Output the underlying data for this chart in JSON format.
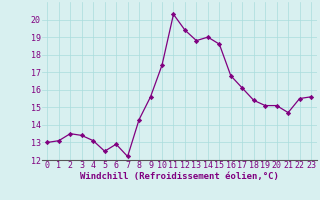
{
  "x": [
    0,
    1,
    2,
    3,
    4,
    5,
    6,
    7,
    8,
    9,
    10,
    11,
    12,
    13,
    14,
    15,
    16,
    17,
    18,
    19,
    20,
    21,
    22,
    23
  ],
  "y": [
    13.0,
    13.1,
    13.5,
    13.4,
    13.1,
    12.5,
    12.9,
    12.2,
    14.3,
    15.6,
    17.4,
    20.3,
    19.4,
    18.8,
    19.0,
    18.6,
    16.8,
    16.1,
    15.4,
    15.1,
    15.1,
    14.7,
    15.5,
    15.6
  ],
  "line_color": "#800080",
  "marker": "D",
  "marker_size": 2.2,
  "line_width": 0.9,
  "xlabel": "Windchill (Refroidissement éolien,°C)",
  "xlabel_fontsize": 6.5,
  "ylim": [
    12,
    21
  ],
  "xlim": [
    -0.5,
    23.5
  ],
  "yticks": [
    12,
    13,
    14,
    15,
    16,
    17,
    18,
    19,
    20
  ],
  "xticks": [
    0,
    1,
    2,
    3,
    4,
    5,
    6,
    7,
    8,
    9,
    10,
    11,
    12,
    13,
    14,
    15,
    16,
    17,
    18,
    19,
    20,
    21,
    22,
    23
  ],
  "grid_color": "#aadddd",
  "bg_color": "#d8f0f0",
  "tick_fontsize": 6.0,
  "tick_label_color": "#800080"
}
